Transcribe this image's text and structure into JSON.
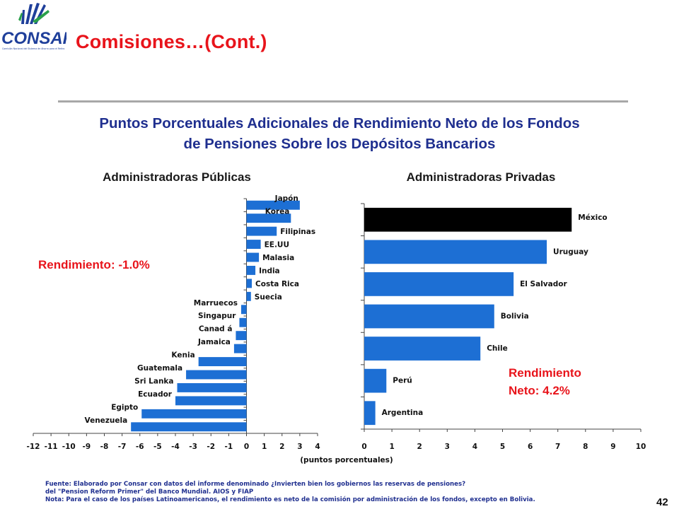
{
  "header": {
    "logo_text": "CONSAR",
    "logo_subtext": "Comisión Nacional del Sistema de Ahorro para el Retiro",
    "title": "Comisiones…(Cont.)"
  },
  "headline": {
    "line1": "Puntos Porcentuales Adicionales de Rendimiento Neto de los Fondos",
    "line2": "de Pensiones Sobre los Depósitos Bancarios"
  },
  "left_summary": "Rendimiento: -1.0%",
  "right_summary": {
    "line1": "Rendimiento",
    "line2": "Neto: 4.2%"
  },
  "chart_data": [
    {
      "type": "bar",
      "orientation": "horizontal",
      "title": "Administradoras Públicas",
      "categories": [
        "Japón",
        "Korea",
        "Filipinas",
        "EE.UU",
        "Malasia",
        "India",
        "Costa Rica",
        "Suecia",
        "Marruecos",
        "Singapur",
        "Canad á",
        "Jamaica",
        "Kenia",
        "Guatemala",
        "Sri Lanka",
        "Ecuador",
        "Egipto",
        "Venezuela"
      ],
      "values": [
        3.0,
        2.5,
        1.7,
        0.8,
        0.7,
        0.5,
        0.3,
        0.25,
        -0.3,
        -0.4,
        -0.6,
        -0.7,
        -2.7,
        -3.4,
        -3.9,
        -4.0,
        -5.9,
        -6.5
      ],
      "xlim": [
        -12,
        4
      ],
      "xticks": [
        "-12",
        "-11",
        "-10",
        "-9",
        "-8",
        "-7",
        "-6",
        "-5",
        "-4",
        "-3",
        "-2",
        "-1",
        "0",
        "1",
        "2",
        "3",
        "4"
      ],
      "bar_color": "#1d6fd4"
    },
    {
      "type": "bar",
      "orientation": "horizontal",
      "title": "Administradoras Privadas",
      "categories": [
        "México",
        "Uruguay",
        "El Salvador",
        "Bolivia",
        "Chile",
        "Perú",
        "Argentina"
      ],
      "values": [
        7.5,
        6.6,
        5.4,
        4.7,
        4.2,
        0.8,
        0.4
      ],
      "xlim": [
        0,
        10
      ],
      "xticks": [
        "0",
        "1",
        "2",
        "3",
        "4",
        "5",
        "6",
        "7",
        "8",
        "9",
        "10"
      ],
      "xlabel": "(puntos porcentuales)",
      "bar_color": "#1d6fd4",
      "highlight_color": "#000000",
      "highlight_category": "México"
    }
  ],
  "footnote": {
    "line1": "Fuente: Elaborado por Consar con datos del informe denominado ¿Invierten bien los gobiernos las reservas de pensiones?",
    "line2": "del \"Pension Reform Primer\" del Banco Mundial. AIOS y FIAP",
    "line3": "Nota: Para el caso de los países Latinoamericanos, el rendimiento es neto de la comisión por administración de los fondos, excepto en Bolivia."
  },
  "page_number": "42"
}
